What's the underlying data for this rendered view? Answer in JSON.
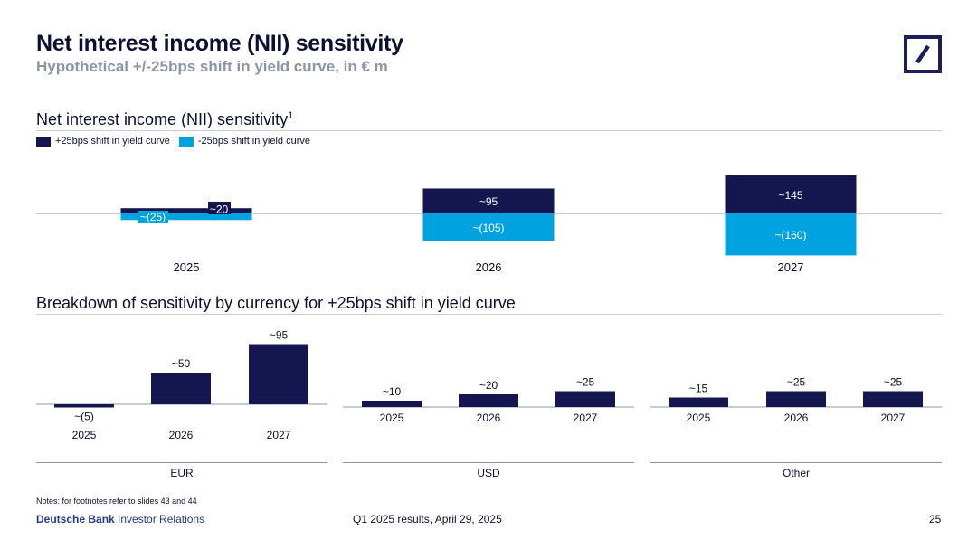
{
  "header": {
    "title": "Net interest income (NII) sensitivity",
    "subtitle": "Hypothetical +/-25bps shift in yield curve, in € m"
  },
  "logo": {
    "icon": "deutsche-bank-logo-icon",
    "color": "#1a1f5c"
  },
  "colors": {
    "navy": "#14164f",
    "cyan": "#00a3e0",
    "grey": "#8c96a3"
  },
  "top_section": {
    "title": "Net interest income (NII) sensitivity",
    "footnote": "1",
    "legend": {
      "plus": "+25bps shift in yield curve",
      "minus": "-25bps shift in yield curve"
    }
  },
  "bottom_section": {
    "title": "Breakdown of sensitivity by currency for +25bps shift in yield curve"
  },
  "chart_data": [
    {
      "type": "bar",
      "title": "Net interest income (NII) sensitivity",
      "categories": [
        "2025",
        "2026",
        "2027"
      ],
      "series": [
        {
          "name": "+25bps shift in yield curve",
          "values": [
            20,
            95,
            145
          ],
          "labels": [
            "~20",
            "~95",
            "~145"
          ]
        },
        {
          "name": "-25bps shift in yield curve",
          "values": [
            -25,
            -105,
            -160
          ],
          "labels": [
            "~(25)",
            "~(105)",
            "~(160)"
          ]
        }
      ]
    },
    {
      "type": "bar",
      "panel": "EUR",
      "categories": [
        "2025",
        "2026",
        "2027"
      ],
      "values": [
        -5,
        50,
        95
      ],
      "labels": [
        "~(5)",
        "~50",
        "~95"
      ]
    },
    {
      "type": "bar",
      "panel": "USD",
      "categories": [
        "2025",
        "2026",
        "2027"
      ],
      "values": [
        10,
        20,
        25
      ],
      "labels": [
        "~10",
        "~20",
        "~25"
      ]
    },
    {
      "type": "bar",
      "panel": "Other",
      "categories": [
        "2025",
        "2026",
        "2027"
      ],
      "values": [
        15,
        25,
        25
      ],
      "labels": [
        "~15",
        "~25",
        "~25"
      ]
    }
  ],
  "footer": {
    "notes": "Notes: for footnotes refer to slides 43 and 44",
    "brand_bold": "Deutsche Bank",
    "brand_rest": " Investor Relations",
    "center": "Q1 2025 results, April 29, 2025",
    "page": "25"
  }
}
